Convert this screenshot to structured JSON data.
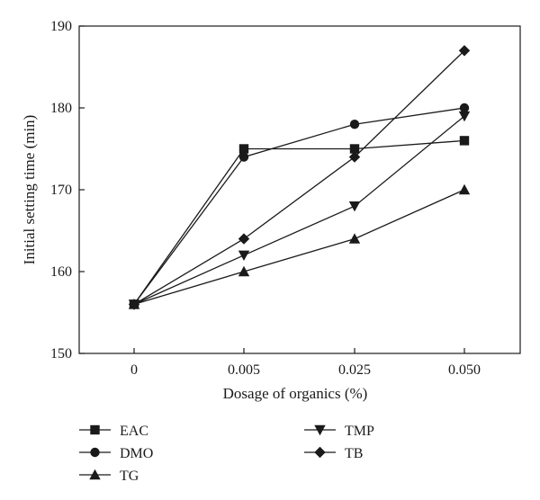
{
  "chart_data": {
    "type": "line",
    "title": "",
    "xlabel": "Dosage of organics (%)",
    "ylabel": "Initial setting time (min)",
    "categories": [
      "0",
      "0.005",
      "0.025",
      "0.050"
    ],
    "ylim": [
      150,
      190
    ],
    "yticks": [
      150,
      160,
      170,
      180,
      190
    ],
    "grid": false,
    "legend_position": "bottom",
    "series": [
      {
        "name": "EAC",
        "marker": "square",
        "values": [
          156,
          175,
          175,
          176
        ]
      },
      {
        "name": "DMO",
        "marker": "circle",
        "values": [
          156,
          174,
          178,
          180
        ]
      },
      {
        "name": "TG",
        "marker": "triangle-up",
        "values": [
          156,
          160,
          164,
          170
        ]
      },
      {
        "name": "TMP",
        "marker": "triangle-down",
        "values": [
          156,
          162,
          168,
          179
        ]
      },
      {
        "name": "TB",
        "marker": "diamond",
        "values": [
          156,
          164,
          174,
          187
        ]
      }
    ],
    "colors": {
      "line": "#1a1a1a",
      "axis": "#1a1a1a"
    }
  }
}
